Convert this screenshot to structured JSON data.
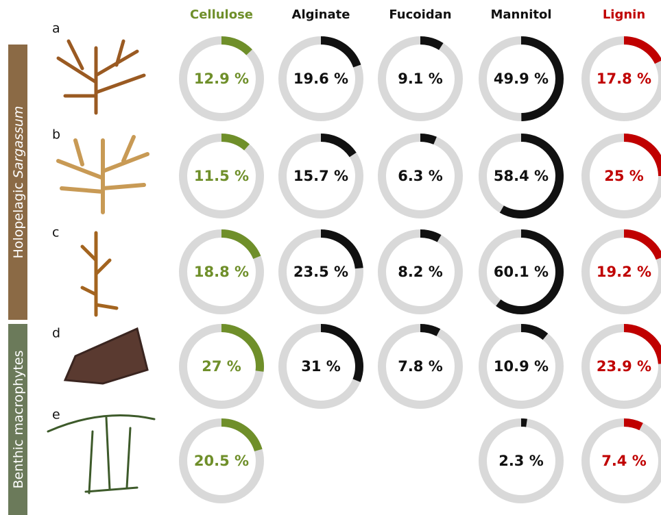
{
  "chart_data": {
    "type": "donut",
    "categories": [
      "a",
      "b",
      "c",
      "d",
      "e"
    ],
    "groups": [
      {
        "label": "Holopelagic",
        "label_italic": "Sargassum",
        "rows": [
          0,
          1,
          2
        ],
        "color": "#8b6a45"
      },
      {
        "label": "Benthic macrophytes",
        "rows": [
          3,
          4
        ],
        "color": "#6b7a5a"
      }
    ],
    "track_color": "#d9d9d9",
    "series": [
      {
        "name": "Cellulose",
        "color": "#6f8f2a",
        "values": [
          12.9,
          11.5,
          18.8,
          27,
          20.5
        ],
        "value_labels": [
          "12.9 %",
          "11.5 %",
          "18.8 %",
          "27 %",
          "20.5 %"
        ]
      },
      {
        "name": "Alginate",
        "color": "#111111",
        "values": [
          19.6,
          15.7,
          23.5,
          31,
          null
        ],
        "value_labels": [
          "19.6 %",
          "15.7 %",
          "23.5 %",
          "31 %",
          null
        ]
      },
      {
        "name": "Fucoidan",
        "color": "#111111",
        "values": [
          9.1,
          6.3,
          8.2,
          7.8,
          null
        ],
        "value_labels": [
          "9.1 %",
          "6.3 %",
          "8.2 %",
          "7.8 %",
          null
        ]
      },
      {
        "name": "Mannitol",
        "color": "#111111",
        "values": [
          49.9,
          58.4,
          60.1,
          10.9,
          2.3
        ],
        "value_labels": [
          "49.9 %",
          "58.4 %",
          "60.1 %",
          "10.9 %",
          "2.3 %"
        ]
      },
      {
        "name": "Lignin",
        "color": "#c00000",
        "values": [
          17.8,
          25,
          19.2,
          23.9,
          7.4
        ],
        "value_labels": [
          "17.8 %",
          "25 %",
          "19.2 %",
          "23.9 %",
          "7.4 %"
        ]
      }
    ]
  }
}
